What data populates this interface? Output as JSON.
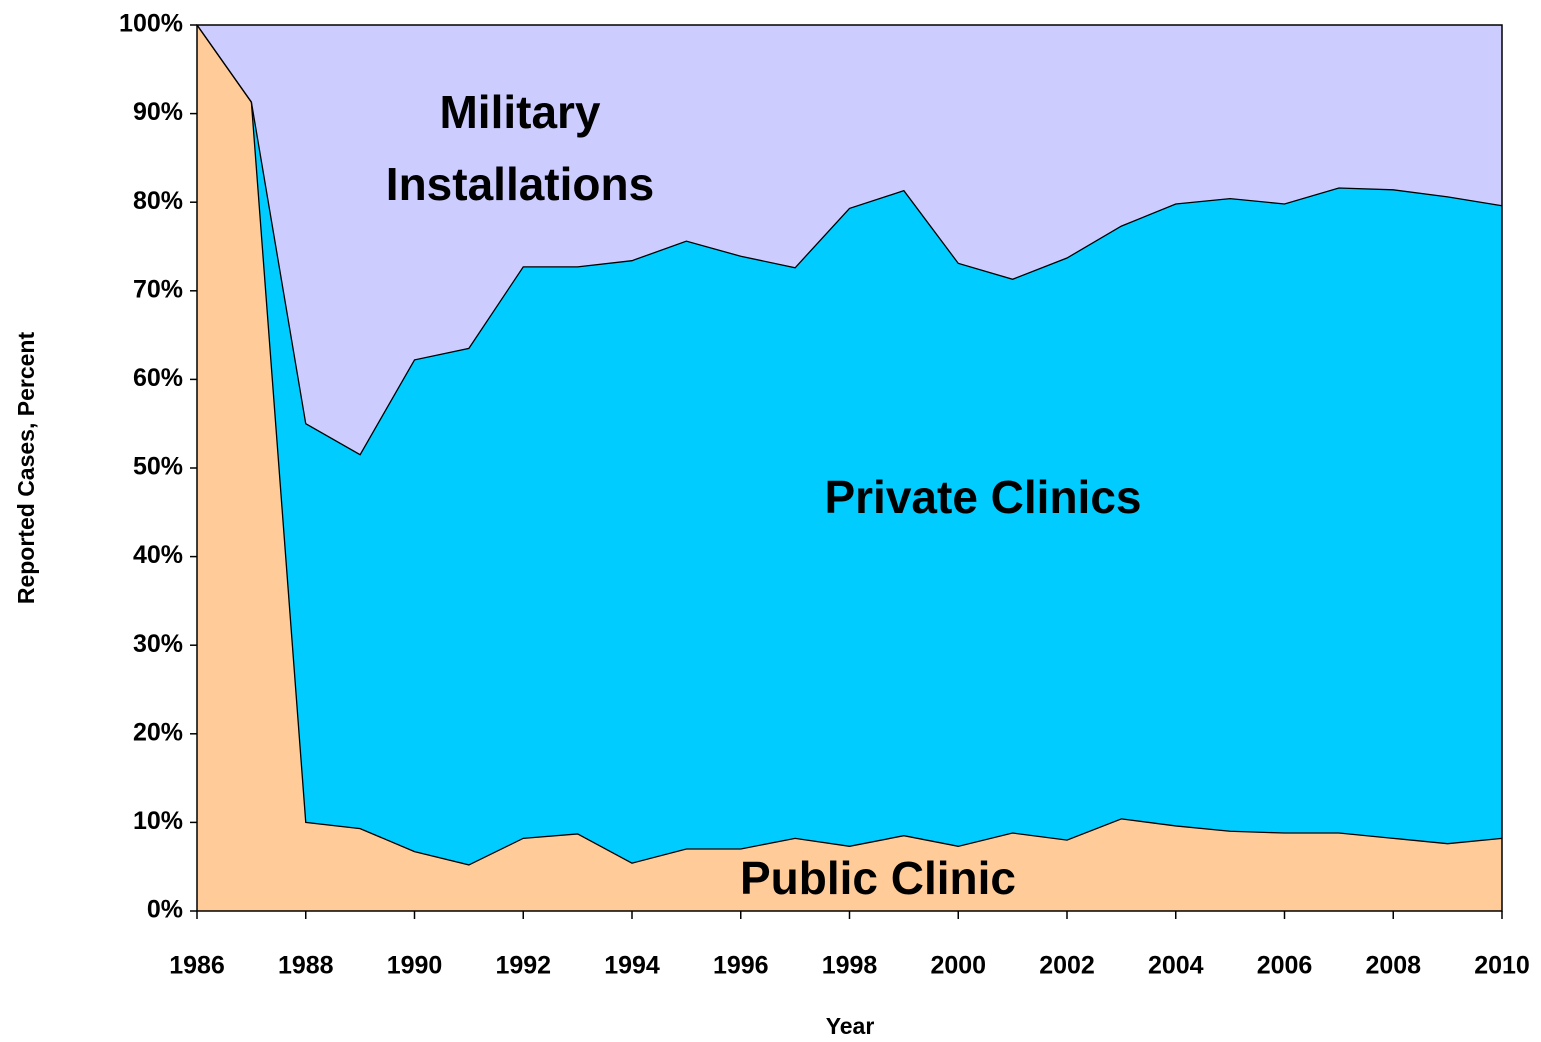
{
  "chart_data": {
    "type": "stacked_area",
    "x_label": "Year",
    "y_label": "Reported Cases, Percent",
    "x": [
      1986,
      1987,
      1988,
      1989,
      1990,
      1991,
      1992,
      1993,
      1994,
      1995,
      1996,
      1997,
      1998,
      1999,
      2000,
      2001,
      2002,
      2003,
      2004,
      2005,
      2006,
      2007,
      2008,
      2009,
      2010
    ],
    "series": [
      {
        "name": "Public Clinic",
        "color": "#ffcc99",
        "values": [
          100,
          91.3,
          10.0,
          9.3,
          6.7,
          5.2,
          8.2,
          8.7,
          5.4,
          7.0,
          7.0,
          8.2,
          7.3,
          8.5,
          7.3,
          8.8,
          8.0,
          10.4,
          9.6,
          9.0,
          8.8,
          8.8,
          8.2,
          7.6,
          8.2
        ]
      },
      {
        "name": "Private Clinics",
        "color": "#00ccff",
        "values": [
          0,
          0,
          45.0,
          42.2,
          55.5,
          58.3,
          64.5,
          64.0,
          68.0,
          68.6,
          66.9,
          64.4,
          72.0,
          72.8,
          65.8,
          62.5,
          65.7,
          66.9,
          70.2,
          71.4,
          71.0,
          72.8,
          73.2,
          73.0,
          71.4
        ]
      },
      {
        "name": "Military Installations",
        "color": "#ccccff",
        "values": [
          0,
          8.7,
          45.0,
          48.5,
          37.8,
          36.5,
          27.3,
          27.3,
          26.6,
          24.4,
          26.1,
          27.4,
          20.7,
          18.7,
          26.9,
          28.7,
          26.3,
          22.7,
          20.2,
          19.6,
          20.2,
          18.4,
          18.6,
          19.4,
          20.4
        ]
      }
    ],
    "xlim": [
      1986,
      2010
    ],
    "xticks": [
      1986,
      1988,
      1990,
      1992,
      1994,
      1996,
      1998,
      2000,
      2002,
      2004,
      2006,
      2008,
      2010
    ],
    "ylim": [
      0,
      100
    ],
    "yticks": [
      {
        "value": 0,
        "label": "0%"
      },
      {
        "value": 10,
        "label": "10%"
      },
      {
        "value": 20,
        "label": "20%"
      },
      {
        "value": 30,
        "label": "30%"
      },
      {
        "value": 40,
        "label": "40%"
      },
      {
        "value": 50,
        "label": "50%"
      },
      {
        "value": 60,
        "label": "60%"
      },
      {
        "value": 70,
        "label": "70%"
      },
      {
        "value": 80,
        "label": "80%"
      },
      {
        "value": 90,
        "label": "90%"
      },
      {
        "value": 100,
        "label": "100%"
      }
    ]
  }
}
